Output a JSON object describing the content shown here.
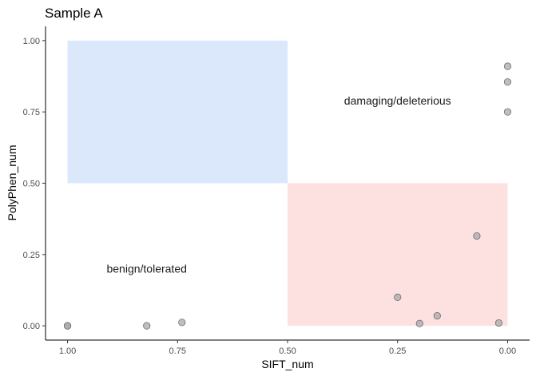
{
  "chart_data": {
    "type": "scatter",
    "title": "Sample A",
    "xlabel": "SIFT_num",
    "ylabel": "PolyPhen_num",
    "x_reversed": true,
    "xlim": [
      1.05,
      -0.05
    ],
    "ylim": [
      -0.05,
      1.05
    ],
    "x_ticks": [
      1.0,
      0.75,
      0.5,
      0.25,
      0.0
    ],
    "x_tick_labels": [
      "1.00",
      "0.75",
      "0.50",
      "0.25",
      "0.00"
    ],
    "y_ticks": [
      0.0,
      0.25,
      0.5,
      0.75,
      1.0
    ],
    "y_tick_labels": [
      "0.00",
      "0.25",
      "0.50",
      "0.75",
      "1.00"
    ],
    "grid": false,
    "regions": [
      {
        "x": [
          0.5,
          1.0
        ],
        "y": [
          0.5,
          1.0
        ],
        "color": "#dbe8fc"
      },
      {
        "x": [
          0.0,
          0.5
        ],
        "y": [
          0.0,
          0.5
        ],
        "color": "#fde0e0"
      }
    ],
    "annotations": [
      {
        "text": "damaging/deleterious",
        "x": 0.25,
        "y": 0.79
      },
      {
        "text": "benign/tolerated",
        "x": 0.82,
        "y": 0.2
      }
    ],
    "points": {
      "x": [
        0.0,
        0.0,
        0.0,
        0.07,
        0.25,
        0.2,
        0.16,
        0.02,
        1.0,
        1.0,
        0.82,
        0.74
      ],
      "y": [
        0.91,
        0.855,
        0.75,
        0.315,
        0.1,
        0.008,
        0.035,
        0.01,
        0.0,
        0.0,
        0.0,
        0.012
      ]
    },
    "point_color": "#a9a9a9",
    "point_edge_color": "#6e6e6e"
  }
}
